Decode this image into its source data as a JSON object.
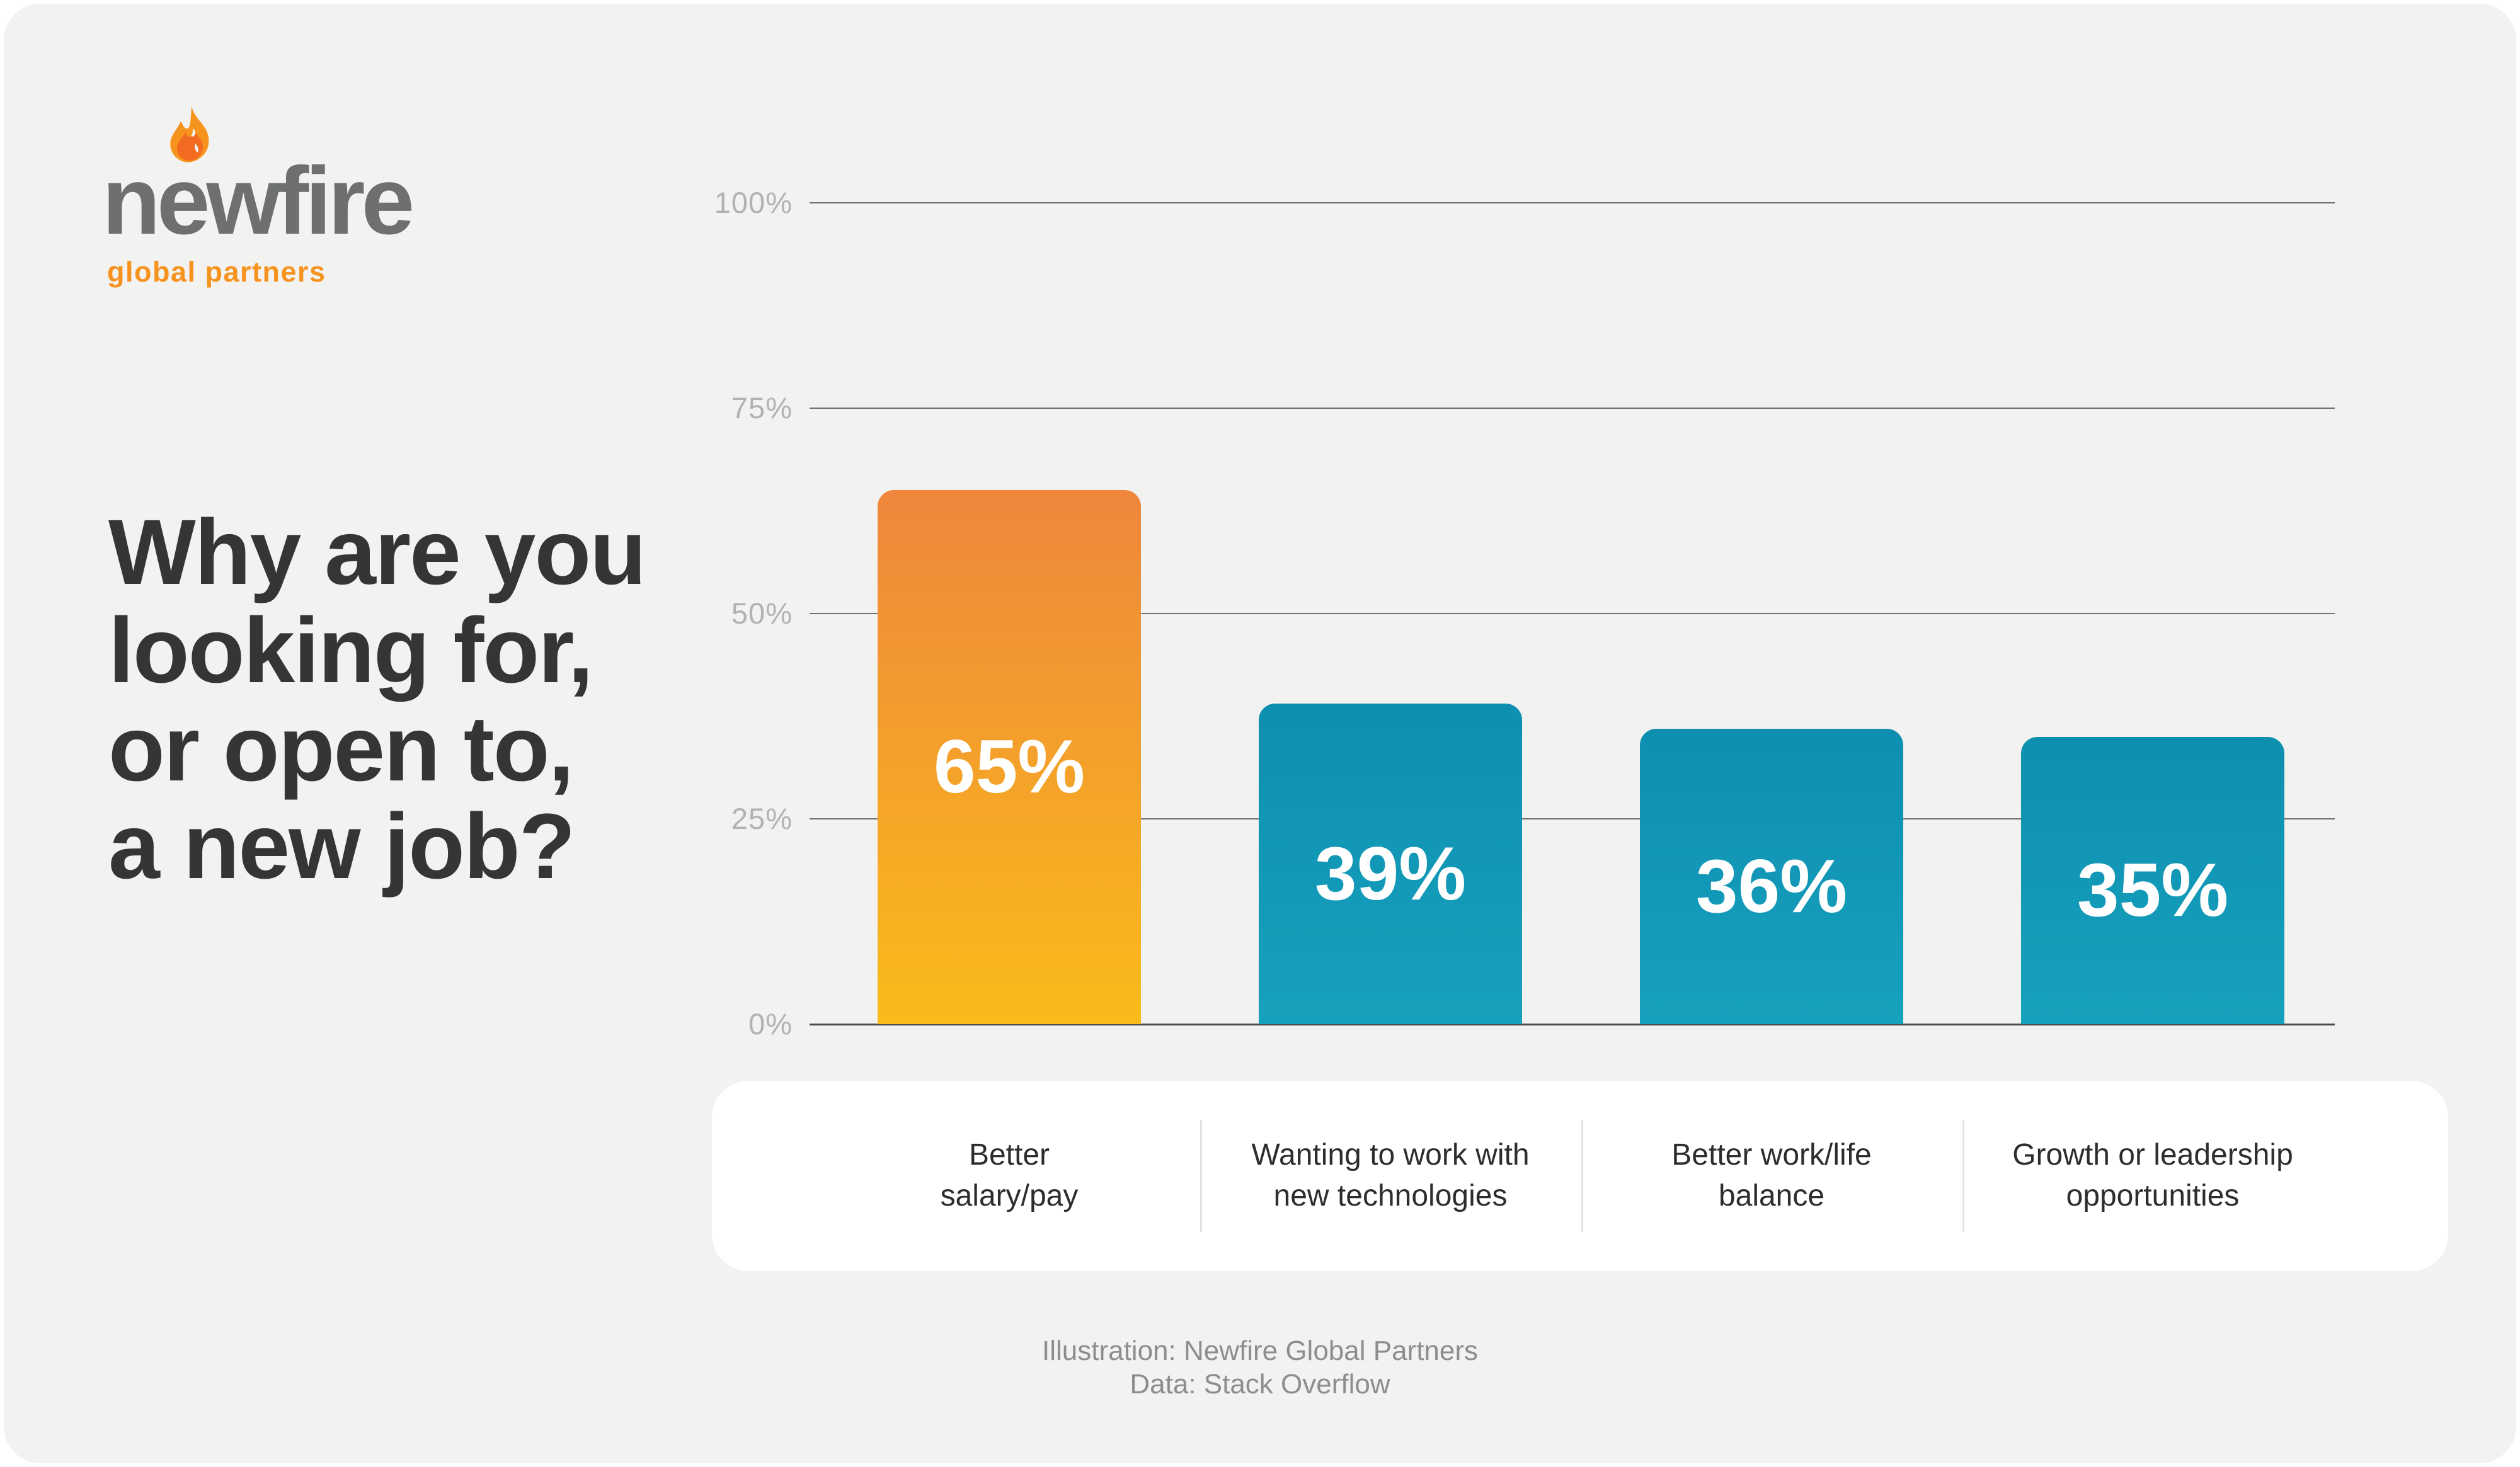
{
  "page": {
    "background": "#FFFFFF",
    "card_background": "#F2F2F0"
  },
  "logo": {
    "wordmark": "newfire",
    "tagline": "global partners",
    "wordmark_color": "#6D706F",
    "tagline_color": "#F6921E",
    "flame_colors": {
      "outer": "#F7941E",
      "inner": "#F26B21"
    }
  },
  "headline": "Why are you\nlooking for,\nor open to,\na new job?",
  "chart_data": {
    "type": "bar",
    "title": "Why are you looking for, or open to, a new job?",
    "categories": [
      "Better\nsalary/pay",
      "Wanting to work with\nnew technologies",
      "Better work/life\nbalance",
      "Growth or leadership\nopportunities"
    ],
    "values": [
      65,
      39,
      36,
      35
    ],
    "bar_labels": [
      "65%",
      "39%",
      "36%",
      "35%"
    ],
    "bar_colors": [
      {
        "top": "#EF863C",
        "bottom": "#F9BB1A"
      },
      {
        "top": "#0E8FB0",
        "bottom": "#16A1BD"
      },
      {
        "top": "#0E8FB0",
        "bottom": "#16A1BD"
      },
      {
        "top": "#0E8FB0",
        "bottom": "#16A1BD"
      }
    ],
    "yticks": [
      "100%",
      "75%",
      "50%",
      "25%",
      "0%"
    ],
    "ylim": [
      0,
      100
    ],
    "grid": true,
    "legend": null,
    "value_label_color": "#FFFFFF",
    "gridline_color": "#707070",
    "tick_label_color": "#B2B2B2"
  },
  "footer": {
    "line1": "Illustration: Newfire Global Partners",
    "line2": "Data: Stack Overflow"
  }
}
